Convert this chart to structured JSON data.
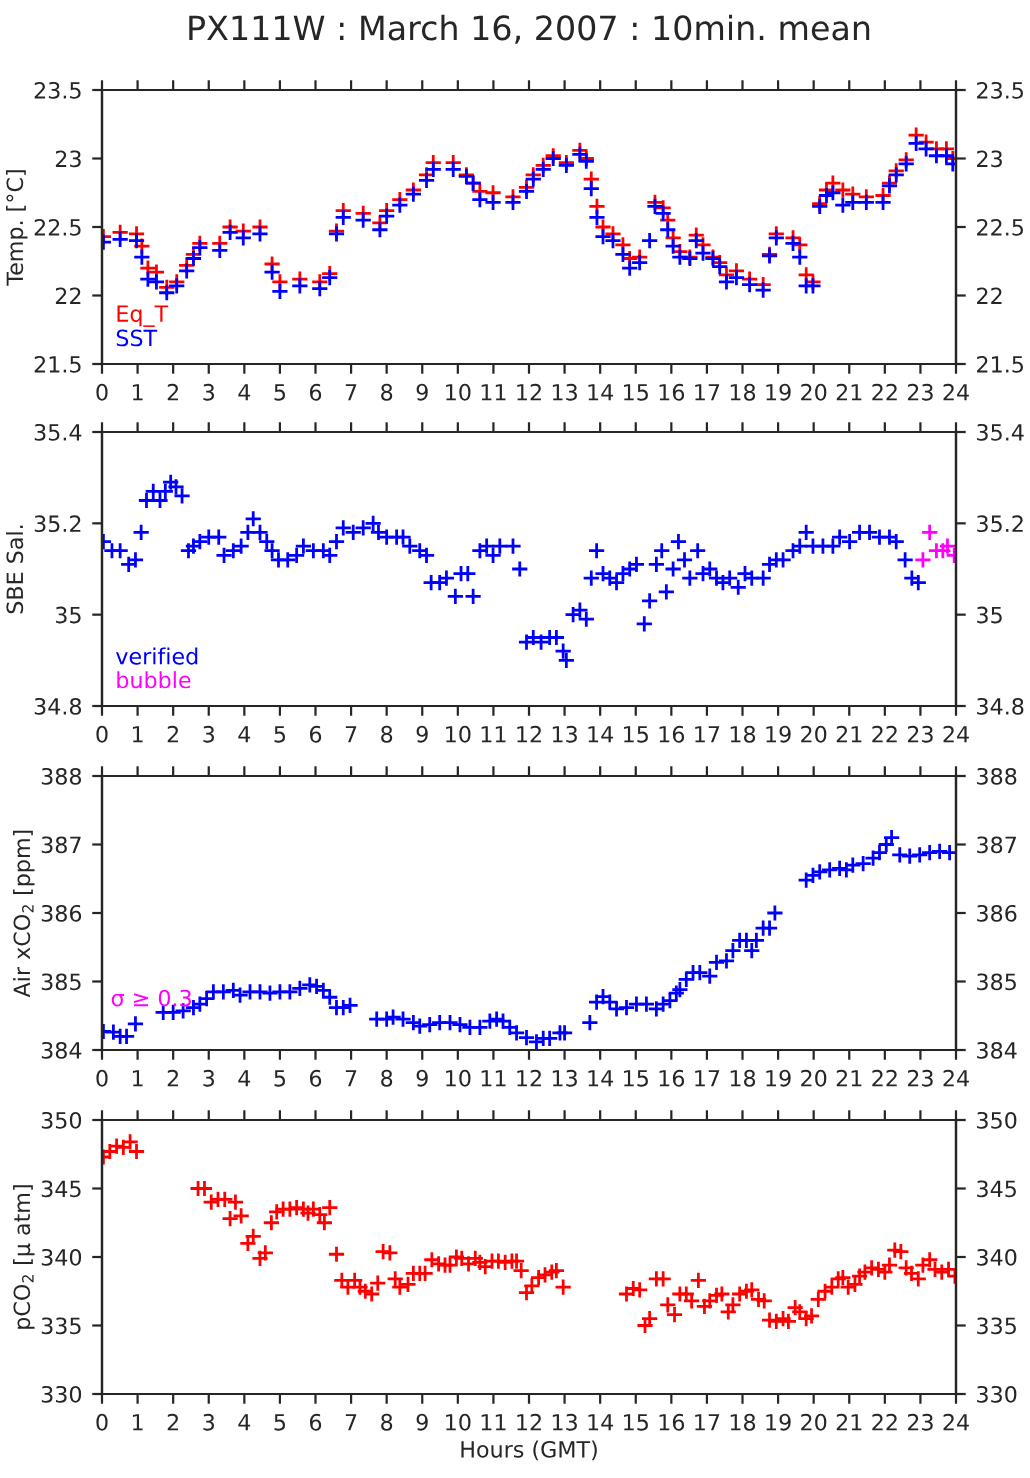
{
  "chart_data": [
    {
      "type": "scatter",
      "title": "PX111W : March 16, 2007 : 10min. mean",
      "ylabel": "Temp. [°C]",
      "marker": "cross",
      "legend": "bottom left",
      "xlim": [
        0,
        24
      ],
      "xticks": [
        0,
        1,
        2,
        3,
        4,
        5,
        6,
        7,
        8,
        9,
        10,
        11,
        12,
        13,
        14,
        15,
        16,
        17,
        18,
        19,
        20,
        21,
        22,
        23,
        24
      ],
      "ylim": [
        21.5,
        23.5
      ],
      "yticks": [
        21.5,
        22,
        22.5,
        23,
        23.5
      ],
      "y2lim": [
        21.5,
        23.5
      ],
      "y2ticks": [
        21.5,
        22,
        22.5,
        23,
        23.5
      ],
      "x": [
        0.04,
        0.51,
        0.97,
        1.12,
        1.29,
        1.53,
        1.82,
        2.1,
        2.38,
        2.57,
        2.75,
        3.31,
        3.6,
        3.97,
        4.44,
        4.78,
        5.0,
        5.56,
        6.12,
        6.4,
        6.59,
        6.78,
        7.34,
        7.81,
        8.0,
        8.37,
        8.75,
        9.12,
        9.31,
        9.87,
        10.24,
        10.43,
        10.62,
        10.99,
        11.55,
        11.93,
        12.12,
        12.4,
        12.68,
        13.05,
        13.43,
        13.61,
        13.75,
        13.91,
        14.08,
        14.36,
        14.64,
        14.83,
        15.11,
        15.39,
        15.54,
        15.77,
        15.9,
        16.05,
        16.24,
        16.52,
        16.7,
        16.89,
        17.17,
        17.36,
        17.55,
        17.83,
        18.2,
        18.58,
        18.76,
        18.95,
        19.42,
        19.61,
        19.79,
        19.98,
        20.17,
        20.36,
        20.54,
        20.82,
        21.1,
        21.48,
        21.95,
        22.13,
        22.32,
        22.6,
        22.88,
        23.16,
        23.45,
        23.73,
        23.91
      ],
      "series": [
        {
          "name": "Eq_T",
          "color": "#ff0000",
          "values": [
            22.43,
            22.46,
            22.45,
            22.36,
            22.2,
            22.17,
            22.06,
            22.1,
            22.22,
            22.3,
            22.38,
            22.38,
            22.5,
            22.47,
            22.5,
            22.23,
            22.1,
            22.12,
            22.1,
            22.16,
            22.47,
            22.62,
            22.6,
            22.53,
            22.62,
            22.7,
            22.77,
            22.88,
            22.97,
            22.97,
            22.88,
            22.82,
            22.76,
            22.75,
            22.72,
            22.79,
            22.88,
            22.95,
            23.02,
            22.97,
            23.06,
            23.0,
            22.85,
            22.65,
            22.5,
            22.45,
            22.37,
            22.27,
            22.28,
            null,
            22.68,
            22.64,
            22.55,
            22.42,
            22.32,
            22.28,
            22.44,
            22.37,
            22.28,
            22.24,
            22.15,
            22.18,
            22.12,
            22.08,
            22.3,
            22.45,
            22.42,
            22.37,
            22.15,
            22.1,
            22.67,
            22.77,
            22.82,
            22.77,
            22.74,
            22.72,
            22.73,
            22.82,
            22.91,
            22.99,
            23.17,
            23.12,
            23.07,
            23.07,
            23.0
          ]
        },
        {
          "name": "SST",
          "color": "#0000ff",
          "values": [
            22.39,
            22.41,
            22.4,
            22.28,
            22.12,
            22.1,
            22.02,
            22.07,
            22.18,
            22.27,
            22.35,
            22.33,
            22.46,
            22.42,
            22.45,
            22.17,
            22.03,
            22.07,
            22.05,
            22.13,
            22.45,
            22.57,
            22.55,
            22.48,
            22.58,
            22.66,
            22.74,
            22.84,
            22.92,
            22.92,
            22.87,
            22.82,
            22.7,
            22.68,
            22.68,
            22.76,
            22.85,
            22.92,
            23.0,
            22.95,
            23.03,
            22.98,
            22.78,
            22.57,
            22.43,
            22.4,
            22.3,
            22.2,
            22.24,
            22.4,
            22.65,
            22.6,
            22.48,
            22.36,
            22.28,
            22.27,
            22.4,
            22.31,
            22.27,
            22.21,
            22.1,
            22.13,
            22.08,
            22.04,
            22.29,
            22.42,
            22.38,
            22.28,
            22.07,
            22.07,
            22.65,
            22.73,
            22.75,
            22.66,
            22.68,
            22.68,
            22.68,
            22.8,
            22.88,
            22.96,
            23.11,
            23.07,
            23.02,
            23.02,
            22.96
          ]
        }
      ]
    },
    {
      "type": "scatter",
      "ylabel": "SBE Sal.",
      "marker": "cross",
      "legend": "bottom left",
      "xlim": [
        0,
        24
      ],
      "xticks": [
        0,
        1,
        2,
        3,
        4,
        5,
        6,
        7,
        8,
        9,
        10,
        11,
        12,
        13,
        14,
        15,
        16,
        17,
        18,
        19,
        20,
        21,
        22,
        23,
        24
      ],
      "ylim": [
        34.8,
        35.4
      ],
      "yticks": [
        34.8,
        35,
        35.2,
        35.4
      ],
      "y2lim": [
        34.8,
        35.4
      ],
      "y2ticks": [
        34.8,
        35,
        35.2,
        35.4
      ],
      "series": [
        {
          "name": "verified",
          "color": "#0000ff",
          "x": [
            0.04,
            0.28,
            0.51,
            0.75,
            0.94,
            1.1,
            1.25,
            1.44,
            1.63,
            1.78,
            1.93,
            2.08,
            2.25,
            2.43,
            2.57,
            2.75,
            3.0,
            3.28,
            3.43,
            3.69,
            3.91,
            4.1,
            4.25,
            4.44,
            4.63,
            4.78,
            4.96,
            5.22,
            5.47,
            5.66,
            5.94,
            6.22,
            6.4,
            6.59,
            6.78,
            7.06,
            7.34,
            7.62,
            7.77,
            8.0,
            8.28,
            8.46,
            8.65,
            8.93,
            9.12,
            9.25,
            9.49,
            9.68,
            9.93,
            10.09,
            10.28,
            10.43,
            10.62,
            10.81,
            10.99,
            11.18,
            11.55,
            11.74,
            11.93,
            12.12,
            12.34,
            12.58,
            12.77,
            12.96,
            13.05,
            13.24,
            13.43,
            13.61,
            13.75,
            13.9,
            14.08,
            14.27,
            14.46,
            14.64,
            14.83,
            15.02,
            15.24,
            15.39,
            15.58,
            15.73,
            15.86,
            16.05,
            16.2,
            16.37,
            16.52,
            16.74,
            16.89,
            17.08,
            17.27,
            17.45,
            17.64,
            17.88,
            18.07,
            18.26,
            18.58,
            18.76,
            18.95,
            19.14,
            19.42,
            19.61,
            19.79,
            19.98,
            20.26,
            20.54,
            20.73,
            21.01,
            21.29,
            21.57,
            21.85,
            22.13,
            22.32,
            22.57,
            22.76,
            22.94
          ],
          "values": [
            35.16,
            35.14,
            35.14,
            35.11,
            35.12,
            35.18,
            35.25,
            35.27,
            35.25,
            35.27,
            35.29,
            35.28,
            35.26,
            35.14,
            35.15,
            35.16,
            35.17,
            35.17,
            35.13,
            35.14,
            35.15,
            35.18,
            35.21,
            35.18,
            35.16,
            35.14,
            35.12,
            35.12,
            35.13,
            35.15,
            35.14,
            35.14,
            35.13,
            35.16,
            35.19,
            35.18,
            35.19,
            35.2,
            35.18,
            35.17,
            35.17,
            35.17,
            35.15,
            35.14,
            35.13,
            35.07,
            35.07,
            35.08,
            35.04,
            35.09,
            35.09,
            35.04,
            35.14,
            35.15,
            35.13,
            35.15,
            35.15,
            35.1,
            34.94,
            34.95,
            34.94,
            34.95,
            34.95,
            34.92,
            34.9,
            35.0,
            35.01,
            34.99,
            35.08,
            35.14,
            35.09,
            35.08,
            35.07,
            35.09,
            35.1,
            35.11,
            34.98,
            35.03,
            35.11,
            35.14,
            35.05,
            35.1,
            35.16,
            35.12,
            35.08,
            35.14,
            35.09,
            35.1,
            35.08,
            35.07,
            35.08,
            35.06,
            35.09,
            35.08,
            35.08,
            35.11,
            35.12,
            35.12,
            35.14,
            35.15,
            35.18,
            35.15,
            35.15,
            35.15,
            35.17,
            35.16,
            35.18,
            35.18,
            35.17,
            35.17,
            35.16,
            35.12,
            35.08,
            35.07
          ]
        },
        {
          "name": "bubble",
          "color": "#ff00ff",
          "x": [
            23.07,
            23.26,
            23.45,
            23.63,
            23.76,
            23.95
          ],
          "values": [
            35.12,
            35.18,
            35.14,
            35.14,
            35.15,
            35.13
          ]
        }
      ]
    },
    {
      "type": "scatter",
      "ylabel": "Air xCO$_{2}$ [ppm]",
      "marker": "cross",
      "annotations": [
        "σ ≥ 0.3"
      ],
      "xlim": [
        0,
        24
      ],
      "xticks": [
        0,
        1,
        2,
        3,
        4,
        5,
        6,
        7,
        8,
        9,
        10,
        11,
        12,
        13,
        14,
        15,
        16,
        17,
        18,
        19,
        20,
        21,
        22,
        23,
        24
      ],
      "ylim": [
        384,
        388
      ],
      "yticks": [
        384,
        385,
        386,
        387,
        388
      ],
      "y2lim": [
        384,
        388
      ],
      "y2ticks": [
        384,
        385,
        386,
        387,
        388
      ],
      "series": [
        {
          "color": "#0000ff",
          "x": [
            0.04,
            0.32,
            0.51,
            0.69,
            0.94,
            1.72,
            2.0,
            2.28,
            2.57,
            2.75,
            2.94,
            3.13,
            3.41,
            3.69,
            3.88,
            4.16,
            4.44,
            4.72,
            5.0,
            5.28,
            5.56,
            5.84,
            6.03,
            6.22,
            6.4,
            6.59,
            6.78,
            6.97,
            7.72,
            8.0,
            8.18,
            8.46,
            8.75,
            8.93,
            9.21,
            9.49,
            9.78,
            10.06,
            10.34,
            10.62,
            10.9,
            11.09,
            11.27,
            11.46,
            11.65,
            11.93,
            12.21,
            12.4,
            12.58,
            12.87,
            13.0,
            13.71,
            13.9,
            14.08,
            14.27,
            14.46,
            14.74,
            15.02,
            15.3,
            15.58,
            15.77,
            15.96,
            16.14,
            16.24,
            16.42,
            16.61,
            16.8,
            17.08,
            17.27,
            17.55,
            17.73,
            17.92,
            18.11,
            18.26,
            18.39,
            18.58,
            18.76,
            18.91,
            19.79,
            19.98,
            20.17,
            20.45,
            20.73,
            20.92,
            21.1,
            21.39,
            21.67,
            21.85,
            22.04,
            22.19,
            22.42,
            22.7,
            22.98,
            23.26,
            23.54,
            23.82
          ],
          "values": [
            384.27,
            384.26,
            384.2,
            384.2,
            384.38,
            384.55,
            384.55,
            384.57,
            384.62,
            384.67,
            384.75,
            384.85,
            384.85,
            384.87,
            384.8,
            384.85,
            384.85,
            384.83,
            384.85,
            384.85,
            384.9,
            384.95,
            384.93,
            384.87,
            384.77,
            384.62,
            384.62,
            384.65,
            384.45,
            384.45,
            384.48,
            384.45,
            384.4,
            384.35,
            384.37,
            384.4,
            384.4,
            384.37,
            384.33,
            384.33,
            384.42,
            384.45,
            384.42,
            384.33,
            384.25,
            384.18,
            384.12,
            384.17,
            384.17,
            384.25,
            384.25,
            384.4,
            384.7,
            384.78,
            384.7,
            384.6,
            384.62,
            384.67,
            384.67,
            384.6,
            384.67,
            384.72,
            384.83,
            384.88,
            385.03,
            385.13,
            385.13,
            385.08,
            385.28,
            385.3,
            385.45,
            385.6,
            385.6,
            385.45,
            385.6,
            385.78,
            385.78,
            386.0,
            386.48,
            386.55,
            386.6,
            386.63,
            386.65,
            386.63,
            386.7,
            386.72,
            386.8,
            386.88,
            387.0,
            387.1,
            386.85,
            386.83,
            386.85,
            386.88,
            386.9,
            386.88
          ]
        }
      ]
    },
    {
      "type": "scatter",
      "ylabel": "pCO$_{2}$ [μ atm]",
      "xlabel": "Hours (GMT)",
      "marker": "cross",
      "xlim": [
        0,
        24
      ],
      "xticks": [
        0,
        1,
        2,
        3,
        4,
        5,
        6,
        7,
        8,
        9,
        10,
        11,
        12,
        13,
        14,
        15,
        16,
        17,
        18,
        19,
        20,
        21,
        22,
        23,
        24
      ],
      "ylim": [
        330,
        350
      ],
      "yticks": [
        330,
        335,
        340,
        345,
        350
      ],
      "y2lim": [
        330,
        350
      ],
      "y2ticks": [
        330,
        335,
        340,
        345,
        350
      ],
      "series": [
        {
          "color": "#ff0000",
          "x": [
            0.04,
            0.22,
            0.41,
            0.6,
            0.79,
            0.97,
            2.7,
            2.88,
            3.07,
            3.26,
            3.45,
            3.6,
            3.75,
            3.91,
            4.1,
            4.25,
            4.44,
            4.59,
            4.76,
            4.91,
            5.09,
            5.28,
            5.47,
            5.66,
            5.79,
            5.94,
            6.12,
            6.25,
            6.4,
            6.59,
            6.74,
            6.91,
            7.1,
            7.25,
            7.4,
            7.58,
            7.75,
            7.9,
            8.09,
            8.24,
            8.37,
            8.6,
            8.75,
            8.93,
            9.08,
            9.27,
            9.46,
            9.64,
            9.78,
            9.96,
            10.11,
            10.3,
            10.49,
            10.62,
            10.77,
            10.96,
            11.14,
            11.33,
            11.52,
            11.65,
            11.78,
            11.93,
            12.08,
            12.27,
            12.45,
            12.64,
            12.77,
            12.96,
            14.74,
            14.93,
            15.11,
            15.26,
            15.39,
            15.58,
            15.77,
            15.9,
            16.09,
            16.24,
            16.42,
            16.57,
            16.76,
            16.93,
            17.08,
            17.27,
            17.42,
            17.6,
            17.73,
            17.92,
            18.11,
            18.26,
            18.45,
            18.61,
            18.76,
            18.95,
            19.14,
            19.29,
            19.48,
            19.61,
            19.79,
            19.94,
            20.13,
            20.32,
            20.51,
            20.69,
            20.82,
            20.97,
            21.16,
            21.29,
            21.44,
            21.63,
            21.82,
            22.0,
            22.13,
            22.28,
            22.45,
            22.6,
            22.75,
            22.94,
            23.07,
            23.26,
            23.41,
            23.6,
            23.79,
            23.97
          ],
          "values": [
            347.3,
            347.7,
            348.1,
            348.0,
            348.4,
            347.7,
            345.0,
            345.0,
            344.0,
            344.2,
            344.2,
            342.8,
            344.0,
            343.0,
            341.0,
            341.5,
            339.9,
            340.3,
            342.5,
            343.3,
            343.5,
            343.5,
            343.6,
            343.5,
            343.2,
            343.5,
            343.1,
            342.5,
            343.6,
            340.2,
            338.3,
            337.8,
            338.3,
            337.8,
            337.5,
            337.3,
            338.1,
            340.4,
            340.3,
            338.4,
            337.8,
            338.0,
            338.8,
            338.8,
            338.8,
            339.8,
            339.5,
            339.4,
            339.4,
            340.0,
            339.9,
            339.5,
            339.9,
            339.6,
            339.3,
            339.7,
            339.7,
            339.6,
            339.7,
            339.7,
            339.0,
            337.4,
            337.9,
            338.5,
            338.7,
            338.9,
            339.0,
            337.8,
            337.3,
            337.7,
            337.6,
            335.0,
            335.5,
            338.4,
            338.4,
            336.5,
            335.8,
            337.3,
            337.3,
            336.8,
            338.3,
            336.4,
            336.8,
            337.2,
            337.3,
            336.0,
            336.5,
            337.3,
            337.5,
            337.6,
            336.9,
            336.8,
            335.4,
            335.3,
            335.5,
            335.3,
            336.3,
            336.0,
            335.5,
            335.7,
            336.9,
            337.5,
            337.8,
            338.4,
            338.5,
            337.8,
            338.0,
            338.6,
            338.9,
            339.2,
            339.1,
            338.9,
            339.4,
            340.5,
            340.4,
            339.2,
            338.8,
            338.4,
            339.4,
            339.8,
            339.1,
            338.9,
            339.1,
            338.6
          ]
        }
      ]
    }
  ]
}
